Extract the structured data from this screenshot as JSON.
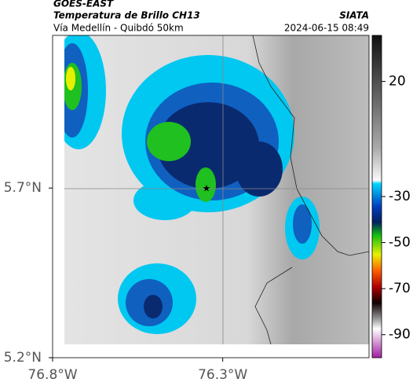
{
  "header": {
    "title": "GOES-EAST",
    "product": "Temperatura de Brillo CH13",
    "source": "SIATA",
    "place": "Vía Medellín - Quibdó 50km",
    "datetime": "2024-06-15 08:49"
  },
  "map": {
    "xlim": [
      -76.8,
      -75.87
    ],
    "ylim": [
      5.2,
      6.15
    ],
    "xticks": [
      {
        "value": -76.8,
        "label": "76.8°W"
      },
      {
        "value": -76.3,
        "label": "76.3°W"
      }
    ],
    "yticks": [
      {
        "value": 5.2,
        "label": "5.2°N"
      },
      {
        "value": 5.7,
        "label": "5.7°N"
      }
    ]
  },
  "colorbar": {
    "range": [
      40,
      -100
    ],
    "ticks": [
      20,
      -30,
      -50,
      -70,
      -90
    ]
  }
}
